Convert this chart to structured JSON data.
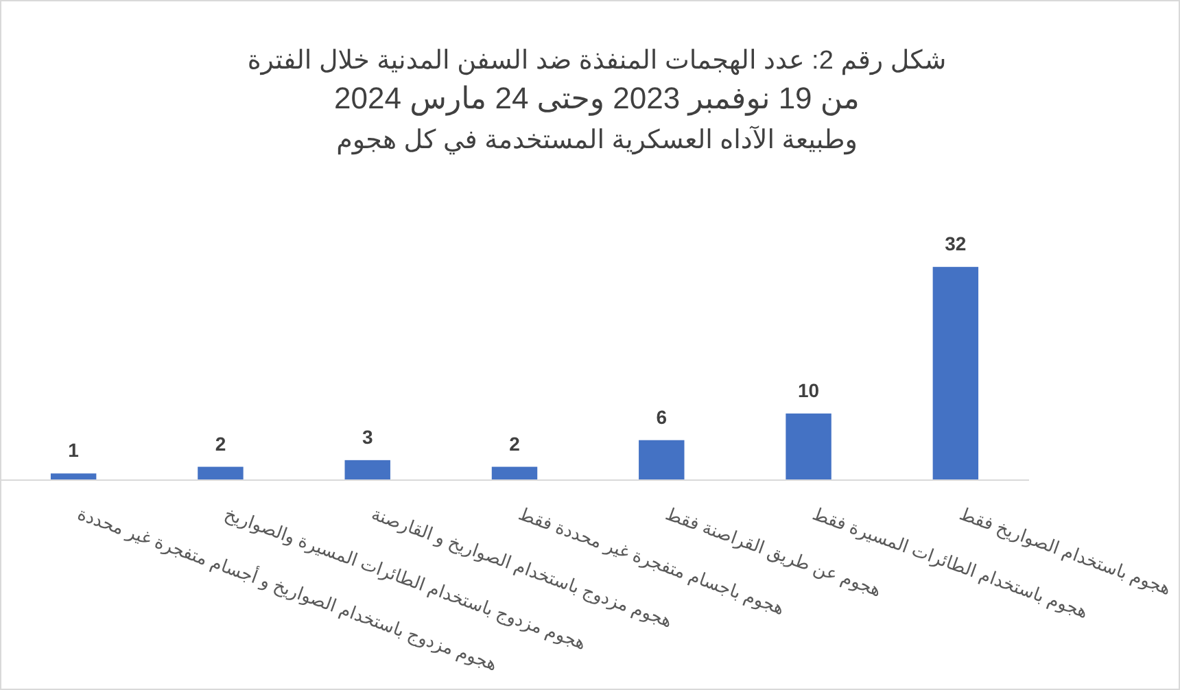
{
  "chart_data": {
    "type": "bar",
    "title": "شكل رقم 2: عدد الهجمات المنفذة ضد السفن المدنية خلال الفترة\nمن 19 نوفمبر 2023 وحتى 24 مارس 2024\nوطبيعة الآداه العسكرية المستخدمة في كل هجوم",
    "categories": [
      "هجوم مزدوج باستخدام الصواريخ و أجسام متفجرة غير محددة",
      "هجوم مزدوج باستخدام الطائرات المسيرة والصواريخ",
      "هجوم مزدوج باستخدام الصواريخ و القارصنة",
      "هجوم باجسام متفجرة غير محددة فقط",
      "هجوم عن طريق القراصنة فقط",
      "هجوم باستخدام الطائرات المسيرة فقط",
      "هجوم باستخدام الصواريخ فقط"
    ],
    "values": [
      1,
      2,
      3,
      2,
      6,
      10,
      32
    ],
    "color": "#4472c4",
    "data_labels": true
  }
}
